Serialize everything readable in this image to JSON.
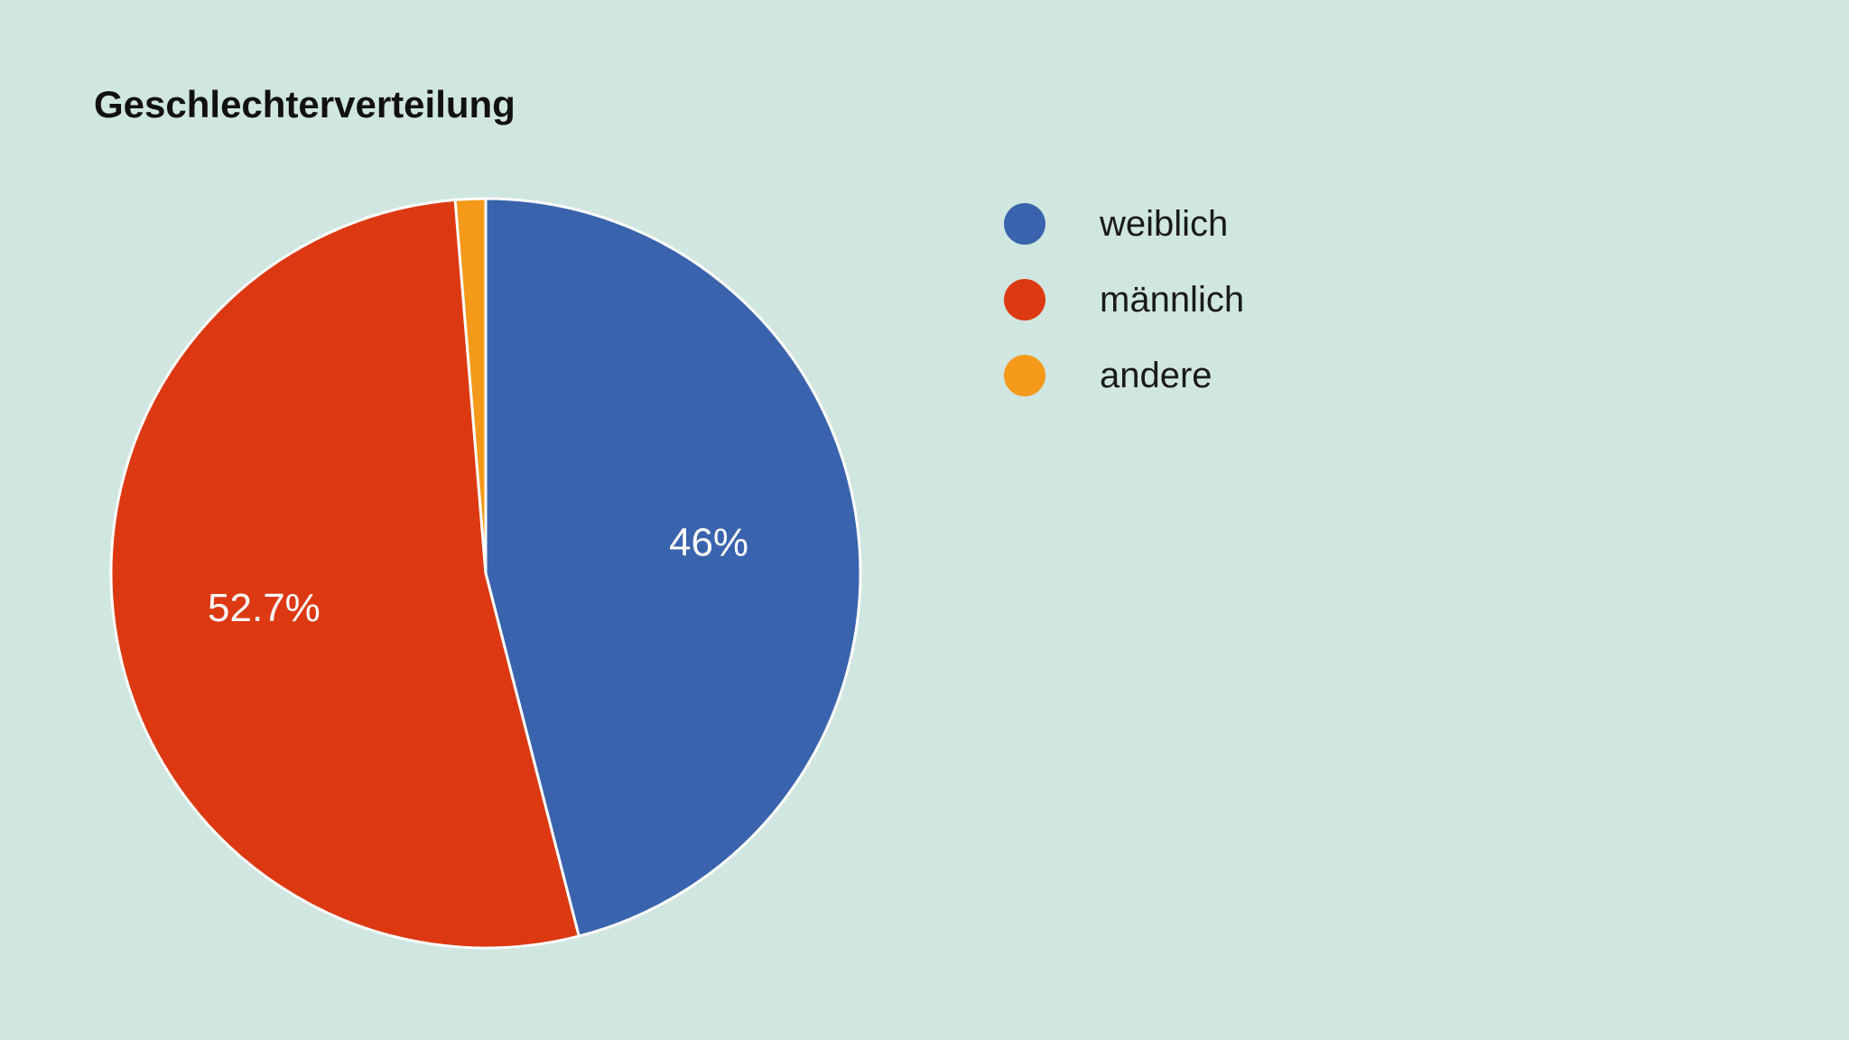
{
  "chart_data": {
    "type": "pie",
    "title": "Geschlechterverteilung",
    "categories": [
      "weiblich",
      "männlich",
      "andere"
    ],
    "values": [
      46.0,
      52.7,
      1.3
    ],
    "value_labels": [
      "46%",
      "52.7%",
      ""
    ],
    "colors": [
      "#3a63ad",
      "#dc3912",
      "#f4991a"
    ],
    "legend_position": "right"
  }
}
